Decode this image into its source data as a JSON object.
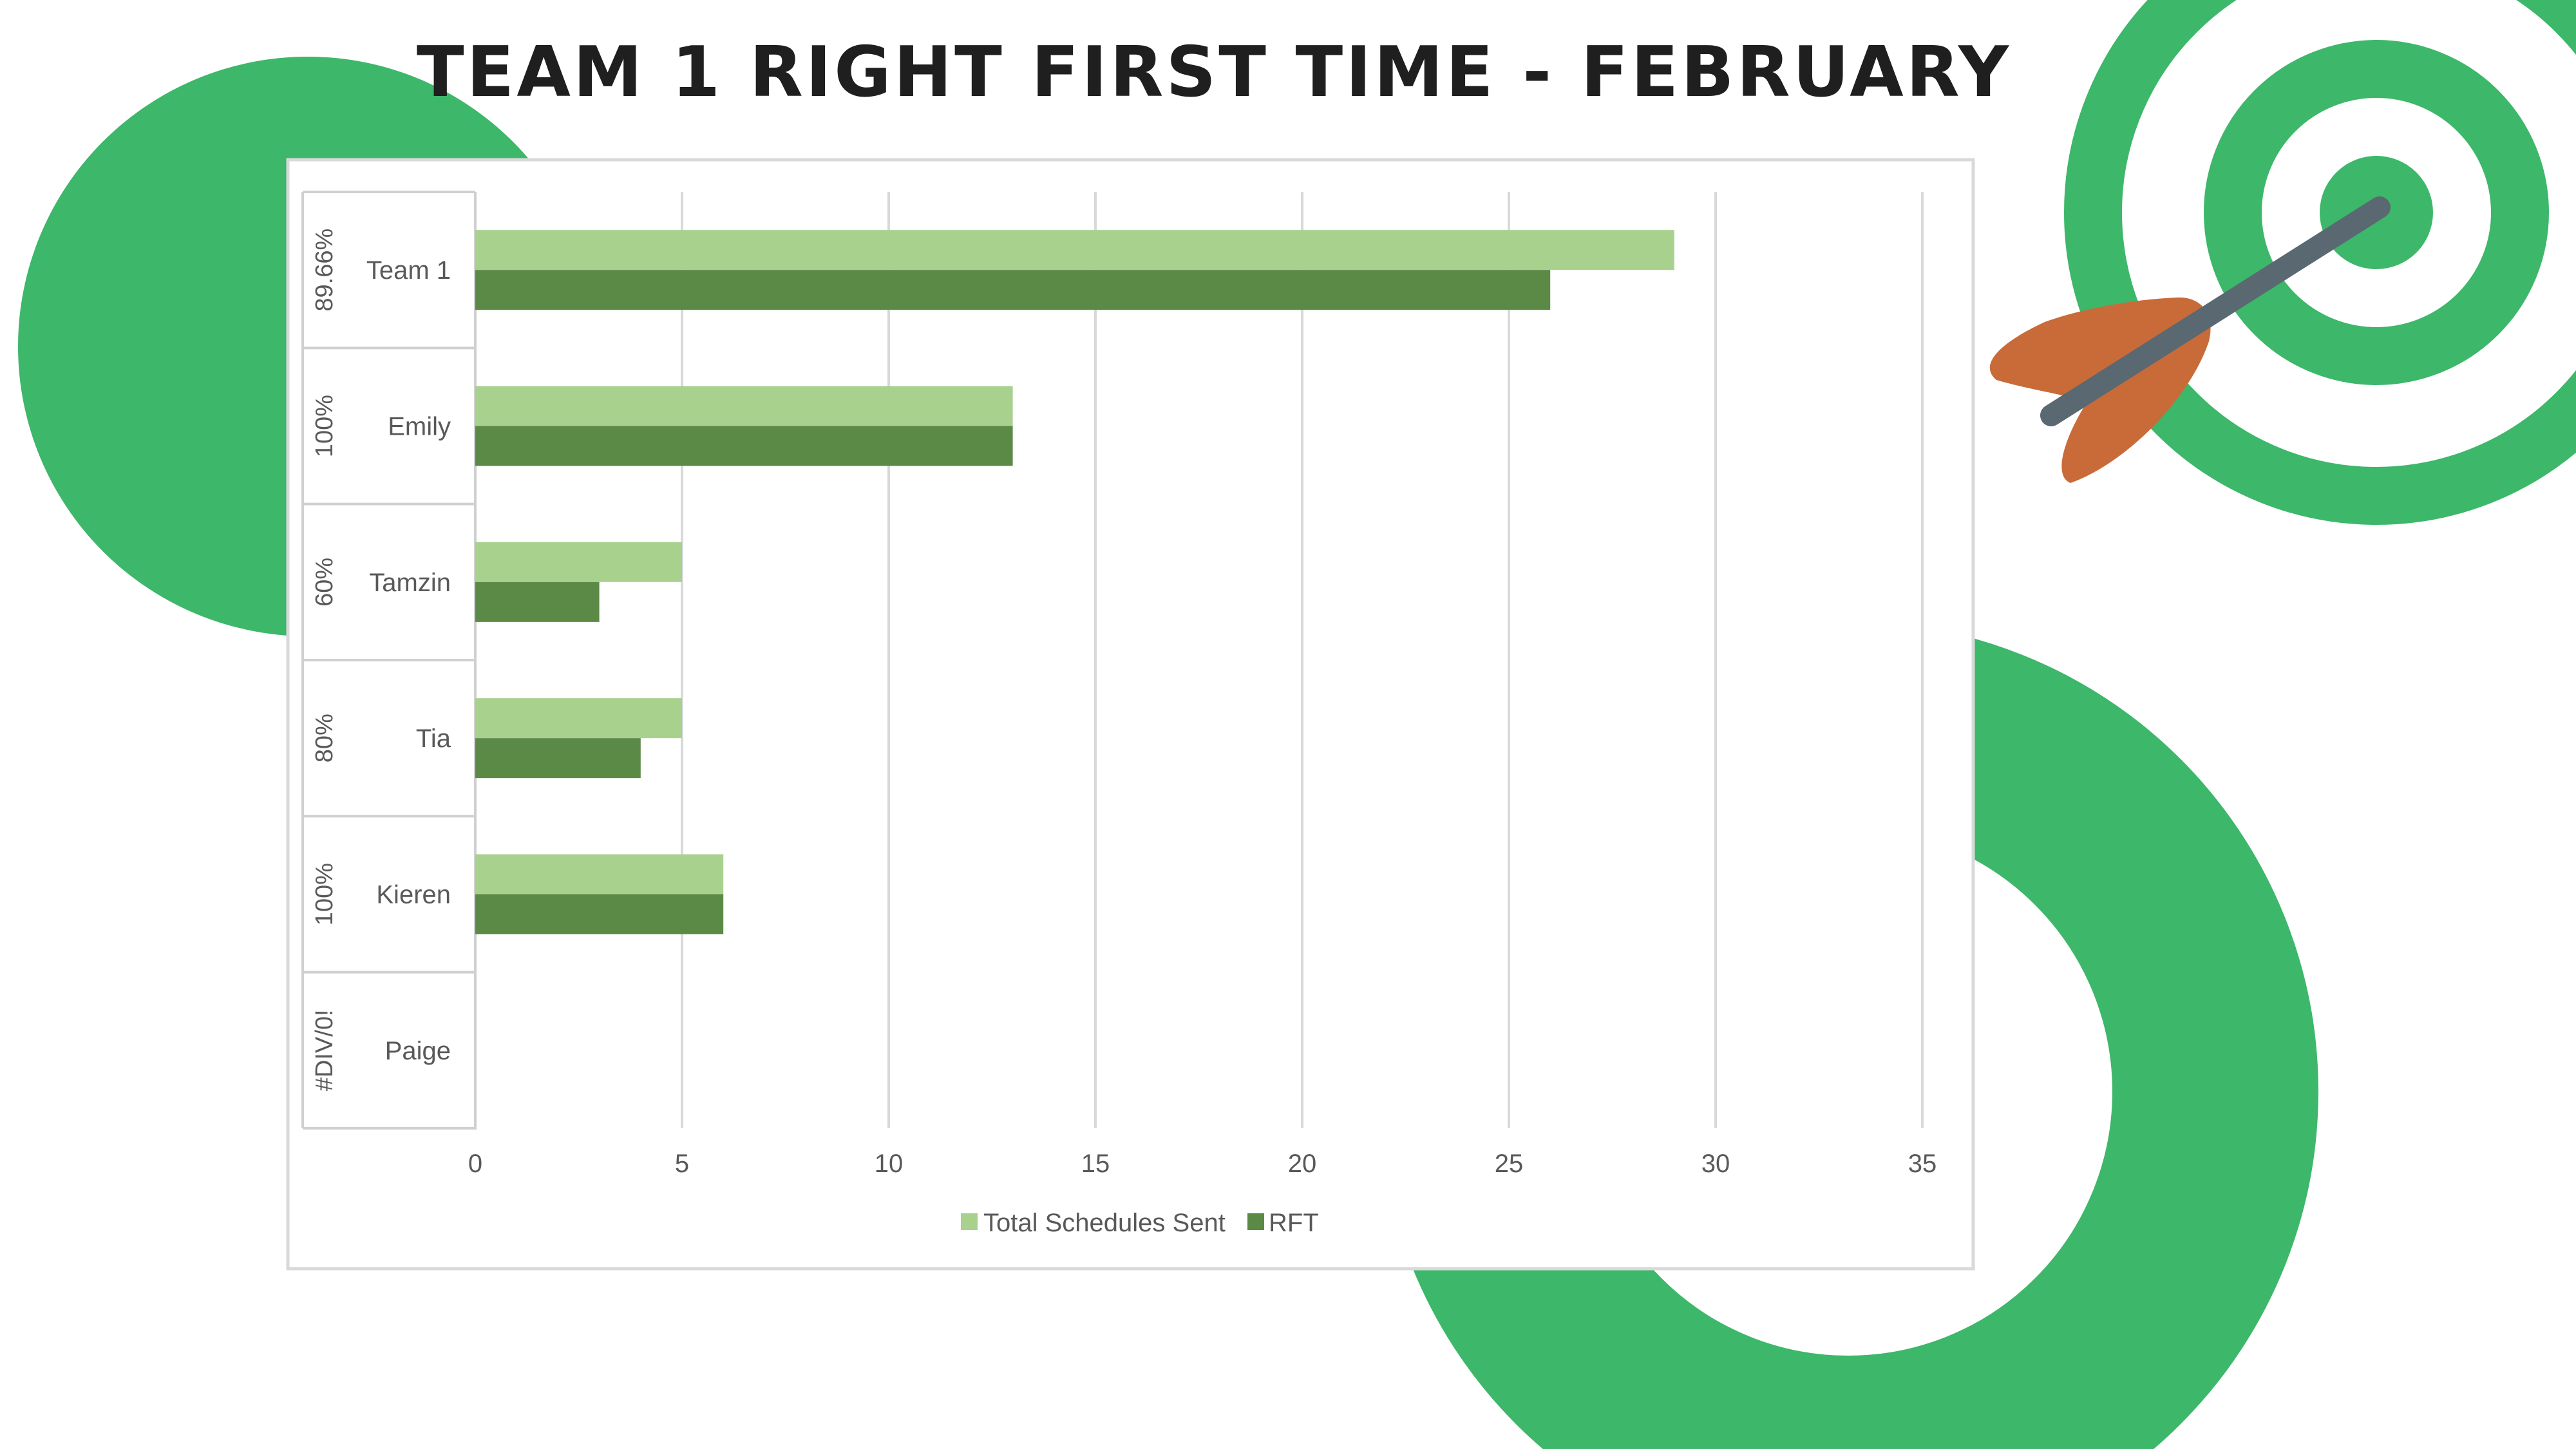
{
  "page": {
    "title": "TEAM 1 RIGHT FIRST TIME - FEBRUARY",
    "colors": {
      "decor_green": "#3DB76A",
      "arrow_shaft": "#5A6872",
      "arrow_fletching": "#C96B38",
      "chart_border": "#D9D9D9"
    },
    "icons": [
      "target-icon",
      "arrow-icon"
    ]
  },
  "chart_data": {
    "type": "bar",
    "orientation": "horizontal",
    "title": "",
    "xlabel": "",
    "ylabel": "",
    "categories": [
      "Team 1",
      "Emily",
      "Tamzin",
      "Tia",
      "Kieren",
      "Paige"
    ],
    "group_labels": [
      "89.66%",
      "100%",
      "60%",
      "80%",
      "100%",
      "#DIV/0!"
    ],
    "series": [
      {
        "name": "Total Schedules Sent",
        "color": "#A9D18E",
        "values": [
          29,
          13,
          5,
          5,
          6,
          0
        ]
      },
      {
        "name": "RFT",
        "color": "#5B8A47",
        "values": [
          26,
          13,
          3,
          4,
          6,
          0
        ]
      }
    ],
    "xlim": [
      0,
      35
    ],
    "x_ticks": [
      0,
      5,
      10,
      15,
      20,
      25,
      30,
      35
    ],
    "grid": true,
    "legend": "bottom"
  }
}
